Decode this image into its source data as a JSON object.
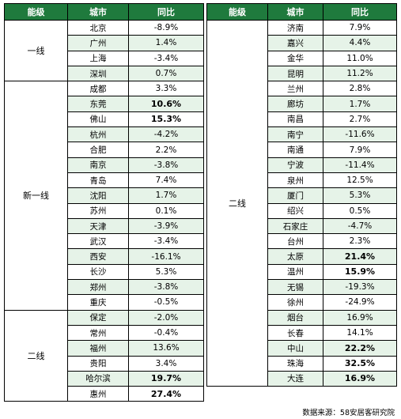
{
  "left_table": {
    "headers": [
      "能级",
      "城市",
      "同比"
    ],
    "groups": [
      {
        "tier": "一线",
        "rows": [
          {
            "city": "北京",
            "yoy": "-8.9%",
            "bold": false
          },
          {
            "city": "广州",
            "yoy": "1.4%",
            "bold": false
          },
          {
            "city": "上海",
            "yoy": "-3.4%",
            "bold": false
          },
          {
            "city": "深圳",
            "yoy": "0.7%",
            "bold": false
          }
        ]
      },
      {
        "tier": "新一线",
        "rows": [
          {
            "city": "成都",
            "yoy": "3.3%",
            "bold": false
          },
          {
            "city": "东莞",
            "yoy": "10.6%",
            "bold": true
          },
          {
            "city": "佛山",
            "yoy": "15.3%",
            "bold": true
          },
          {
            "city": "杭州",
            "yoy": "-4.2%",
            "bold": false
          },
          {
            "city": "合肥",
            "yoy": "2.2%",
            "bold": false
          },
          {
            "city": "南京",
            "yoy": "-3.8%",
            "bold": false
          },
          {
            "city": "青岛",
            "yoy": "7.4%",
            "bold": false
          },
          {
            "city": "沈阳",
            "yoy": "1.7%",
            "bold": false
          },
          {
            "city": "苏州",
            "yoy": "0.1%",
            "bold": false
          },
          {
            "city": "天津",
            "yoy": "-3.9%",
            "bold": false
          },
          {
            "city": "武汉",
            "yoy": "-3.4%",
            "bold": false
          },
          {
            "city": "西安",
            "yoy": "-16.1%",
            "bold": false
          },
          {
            "city": "长沙",
            "yoy": "5.3%",
            "bold": false
          },
          {
            "city": "郑州",
            "yoy": "-3.8%",
            "bold": false
          },
          {
            "city": "重庆",
            "yoy": "-0.5%",
            "bold": false
          }
        ]
      },
      {
        "tier": "二线",
        "rows": [
          {
            "city": "保定",
            "yoy": "-2.0%",
            "bold": false
          },
          {
            "city": "常州",
            "yoy": "-0.4%",
            "bold": false
          },
          {
            "city": "福州",
            "yoy": "13.6%",
            "bold": false
          },
          {
            "city": "贵阳",
            "yoy": "3.4%",
            "bold": false
          },
          {
            "city": "哈尔滨",
            "yoy": "19.7%",
            "bold": true
          },
          {
            "city": "惠州",
            "yoy": "27.4%",
            "bold": true
          }
        ]
      }
    ]
  },
  "right_table": {
    "headers": [
      "能级",
      "城市",
      "同比"
    ],
    "groups": [
      {
        "tier": "二线",
        "rows": [
          {
            "city": "济南",
            "yoy": "7.9%",
            "bold": false
          },
          {
            "city": "嘉兴",
            "yoy": "4.4%",
            "bold": false
          },
          {
            "city": "金华",
            "yoy": "11.0%",
            "bold": false
          },
          {
            "city": "昆明",
            "yoy": "11.2%",
            "bold": false
          },
          {
            "city": "兰州",
            "yoy": "2.8%",
            "bold": false
          },
          {
            "city": "廊坊",
            "yoy": "1.7%",
            "bold": false
          },
          {
            "city": "南昌",
            "yoy": "2.7%",
            "bold": false
          },
          {
            "city": "南宁",
            "yoy": "-11.6%",
            "bold": false
          },
          {
            "city": "南通",
            "yoy": "7.9%",
            "bold": false
          },
          {
            "city": "宁波",
            "yoy": "-11.4%",
            "bold": false
          },
          {
            "city": "泉州",
            "yoy": "12.5%",
            "bold": false
          },
          {
            "city": "厦门",
            "yoy": "5.3%",
            "bold": false
          },
          {
            "city": "绍兴",
            "yoy": "0.5%",
            "bold": false
          },
          {
            "city": "石家庄",
            "yoy": "-4.7%",
            "bold": false
          },
          {
            "city": "台州",
            "yoy": "2.3%",
            "bold": false
          },
          {
            "city": "太原",
            "yoy": "21.4%",
            "bold": true
          },
          {
            "city": "温州",
            "yoy": "15.9%",
            "bold": true
          },
          {
            "city": "无锡",
            "yoy": "-19.3%",
            "bold": false
          },
          {
            "city": "徐州",
            "yoy": "-24.9%",
            "bold": false
          },
          {
            "city": "烟台",
            "yoy": "16.9%",
            "bold": false
          },
          {
            "city": "长春",
            "yoy": "14.1%",
            "bold": false
          },
          {
            "city": "中山",
            "yoy": "22.2%",
            "bold": true
          },
          {
            "city": "珠海",
            "yoy": "32.5%",
            "bold": true
          },
          {
            "city": "大连",
            "yoy": "16.9%",
            "bold": true
          }
        ]
      }
    ]
  },
  "source": "数据来源：58安居客研究院",
  "colors": {
    "header_bg": "#1f7a3d",
    "row_green": "#e6f3e8",
    "border": "#000000"
  }
}
